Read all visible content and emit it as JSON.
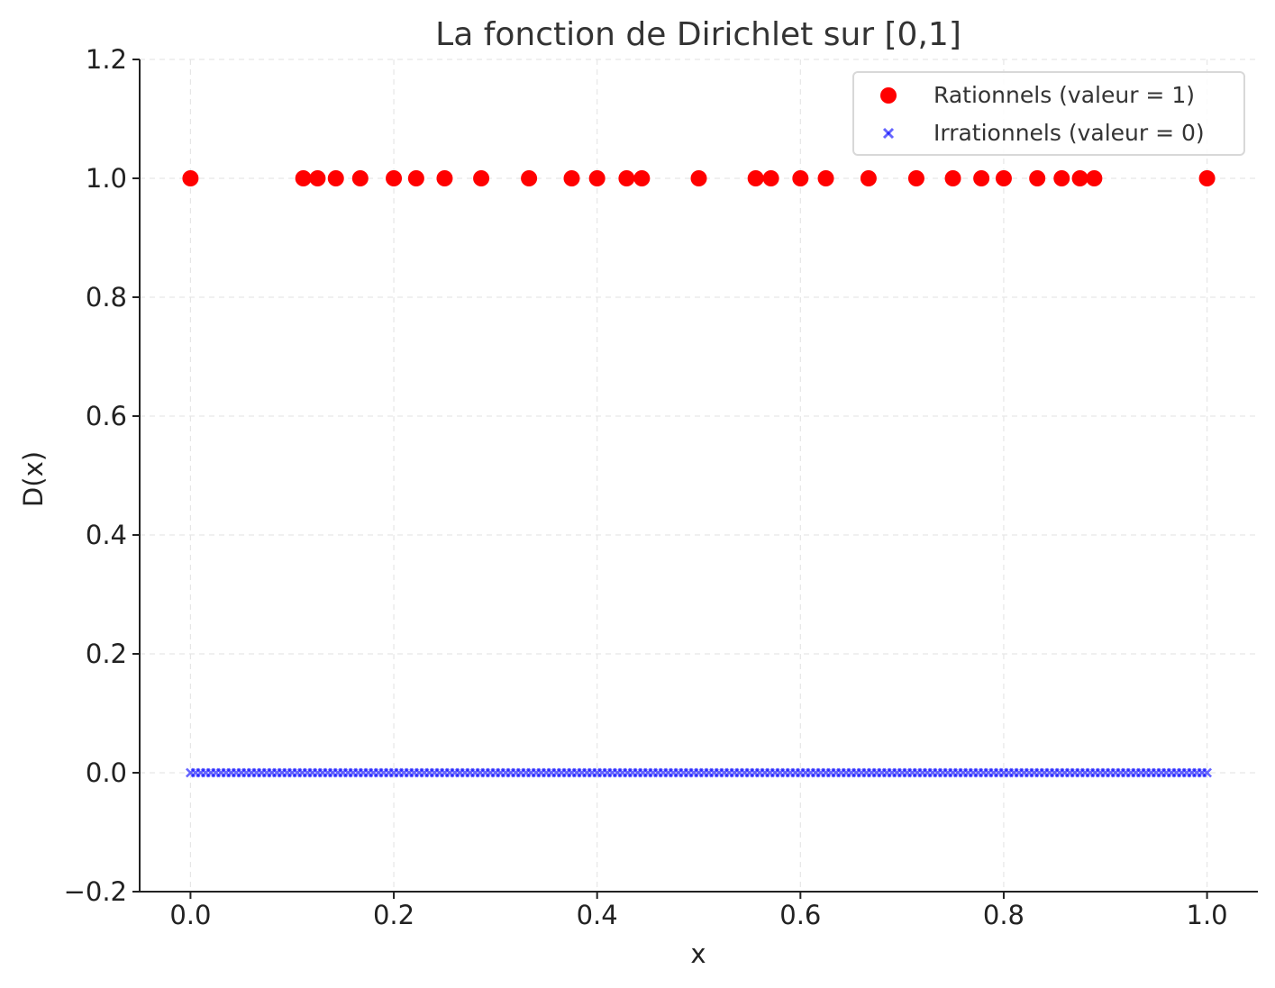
{
  "chart_data": {
    "type": "scatter",
    "title": "La fonction de Dirichlet sur [0,1]",
    "xlabel": "x",
    "ylabel": "D(x)",
    "xlim": [
      -0.05,
      1.05
    ],
    "ylim": [
      -0.2,
      1.2
    ],
    "x_ticks": [
      "0.0",
      "0.2",
      "0.4",
      "0.6",
      "0.8",
      "1.0"
    ],
    "x_tick_values": [
      0.0,
      0.2,
      0.4,
      0.6,
      0.8,
      1.0
    ],
    "y_ticks": [
      "−0.2",
      "0.0",
      "0.2",
      "0.4",
      "0.6",
      "0.8",
      "1.0",
      "1.2"
    ],
    "y_tick_values": [
      -0.2,
      0.0,
      0.2,
      0.4,
      0.6,
      0.8,
      1.0,
      1.2
    ],
    "grid": true,
    "legend_position": "top-right",
    "series": [
      {
        "name": "Rationnels (valeur = 1)",
        "color": "#ff0000",
        "marker": "circle",
        "x": [
          0.0,
          0.111,
          0.125,
          0.143,
          0.167,
          0.2,
          0.222,
          0.25,
          0.286,
          0.333,
          0.375,
          0.4,
          0.429,
          0.444,
          0.5,
          0.556,
          0.571,
          0.6,
          0.625,
          0.667,
          0.714,
          0.75,
          0.778,
          0.8,
          0.833,
          0.857,
          0.875,
          0.889,
          1.0
        ],
        "y": [
          1,
          1,
          1,
          1,
          1,
          1,
          1,
          1,
          1,
          1,
          1,
          1,
          1,
          1,
          1,
          1,
          1,
          1,
          1,
          1,
          1,
          1,
          1,
          1,
          1,
          1,
          1,
          1,
          1
        ]
      },
      {
        "name": "Irrationnels (valeur = 0)",
        "color": "#0000ff",
        "marker": "x",
        "x": [
          0.0,
          0.005,
          0.01,
          0.015,
          0.02,
          0.025,
          0.03,
          0.035,
          0.04,
          0.045,
          0.05,
          0.055,
          0.06,
          0.065,
          0.07,
          0.075,
          0.08,
          0.085,
          0.09,
          0.095,
          0.1,
          0.105,
          0.11,
          0.115,
          0.12,
          0.125,
          0.13,
          0.135,
          0.14,
          0.145,
          0.15,
          0.155,
          0.16,
          0.165,
          0.17,
          0.175,
          0.18,
          0.185,
          0.19,
          0.195,
          0.2,
          0.205,
          0.21,
          0.215,
          0.22,
          0.225,
          0.23,
          0.235,
          0.24,
          0.245,
          0.25,
          0.255,
          0.26,
          0.265,
          0.27,
          0.275,
          0.28,
          0.285,
          0.29,
          0.295,
          0.3,
          0.305,
          0.31,
          0.315,
          0.32,
          0.325,
          0.33,
          0.335,
          0.34,
          0.345,
          0.35,
          0.355,
          0.36,
          0.365,
          0.37,
          0.375,
          0.38,
          0.385,
          0.39,
          0.395,
          0.4,
          0.405,
          0.41,
          0.415,
          0.42,
          0.425,
          0.43,
          0.435,
          0.44,
          0.445,
          0.45,
          0.455,
          0.46,
          0.465,
          0.47,
          0.475,
          0.48,
          0.485,
          0.49,
          0.495,
          0.5,
          0.505,
          0.51,
          0.515,
          0.52,
          0.525,
          0.53,
          0.535,
          0.54,
          0.545,
          0.55,
          0.555,
          0.56,
          0.565,
          0.57,
          0.575,
          0.58,
          0.585,
          0.59,
          0.595,
          0.6,
          0.605,
          0.61,
          0.615,
          0.62,
          0.625,
          0.63,
          0.635,
          0.64,
          0.645,
          0.65,
          0.655,
          0.66,
          0.665,
          0.67,
          0.675,
          0.68,
          0.685,
          0.69,
          0.695,
          0.7,
          0.705,
          0.71,
          0.715,
          0.72,
          0.725,
          0.73,
          0.735,
          0.74,
          0.745,
          0.75,
          0.755,
          0.76,
          0.765,
          0.77,
          0.775,
          0.78,
          0.785,
          0.79,
          0.795,
          0.8,
          0.805,
          0.81,
          0.815,
          0.82,
          0.825,
          0.83,
          0.835,
          0.84,
          0.845,
          0.85,
          0.855,
          0.86,
          0.865,
          0.87,
          0.875,
          0.88,
          0.885,
          0.89,
          0.895,
          0.9,
          0.905,
          0.91,
          0.915,
          0.92,
          0.925,
          0.93,
          0.935,
          0.94,
          0.945,
          0.95,
          0.955,
          0.96,
          0.965,
          0.97,
          0.975,
          0.98,
          0.985,
          0.99,
          0.995,
          1.0
        ],
        "y_value": 0
      }
    ]
  }
}
